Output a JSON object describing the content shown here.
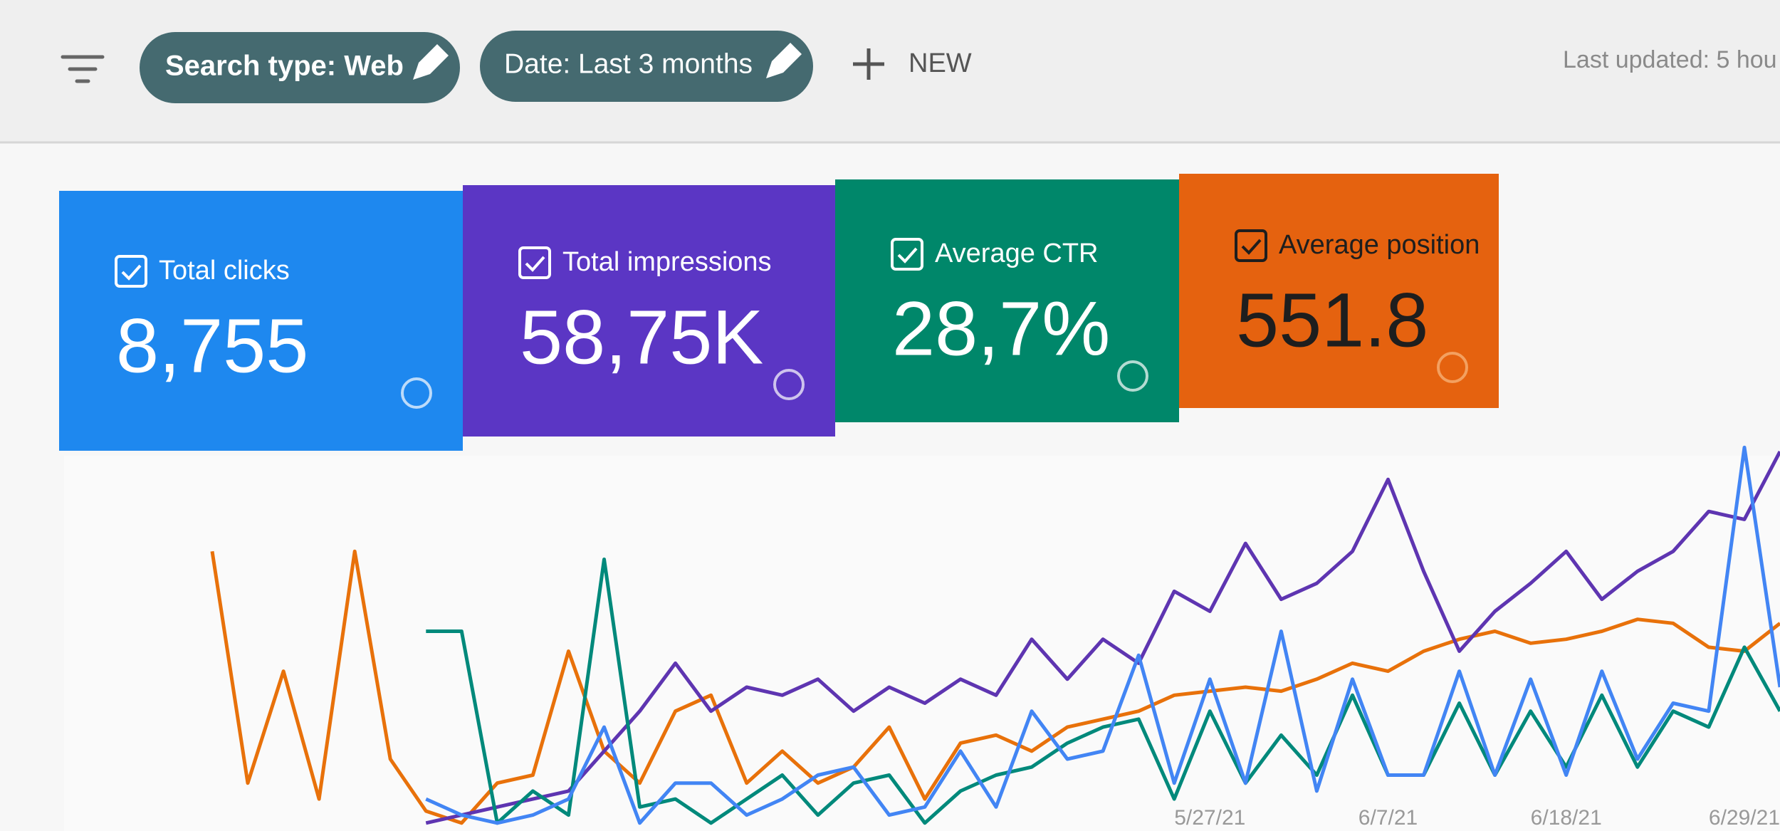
{
  "toolbar": {
    "chips": [
      "Search type: Web",
      "Date: Last 3 months"
    ],
    "new_button": "NEW",
    "last_updated": "Last updated: 5 hou"
  },
  "cards": [
    {
      "label": "Total clicks",
      "value": "8,755",
      "color": "#1e88ef"
    },
    {
      "label": "Total impressions",
      "value": "58,75K",
      "color": "#5b36c4"
    },
    {
      "label": "Average CTR",
      "value": "28,7%",
      "color": "#00876a"
    },
    {
      "label": "Average position",
      "value": "551.8",
      "color": "#e5620f"
    }
  ],
  "chart_data": {
    "type": "line",
    "categories": [
      null,
      null,
      null,
      null,
      null,
      null,
      null,
      null,
      null,
      null,
      null,
      null,
      null,
      null,
      null,
      null,
      null,
      null,
      null,
      null,
      null,
      null,
      null,
      null,
      null,
      null,
      null,
      null,
      "5/27/21",
      null,
      null,
      null,
      null,
      "6/7/21",
      null,
      null,
      null,
      null,
      "6/18/21",
      null,
      null,
      null,
      null,
      "6/29/21",
      null
    ],
    "ylim": [
      0,
      100
    ],
    "series": [
      {
        "name": "Average position",
        "color": "#e8710a",
        "values": [
          70,
          12,
          40,
          8,
          70,
          18,
          5,
          2,
          12,
          14,
          45,
          20,
          12,
          30,
          34,
          12,
          20,
          12,
          16,
          26,
          8,
          22,
          24,
          20,
          26,
          28,
          30,
          34,
          35,
          36,
          35,
          38,
          42,
          40,
          45,
          48,
          50,
          47,
          48,
          50,
          53,
          52,
          46,
          45,
          52
        ]
      },
      {
        "name": "Total impressions",
        "color": "#5e35b1",
        "values": [
          null,
          null,
          null,
          null,
          null,
          null,
          2,
          4,
          6,
          8,
          10,
          20,
          30,
          42,
          30,
          36,
          34,
          38,
          30,
          36,
          32,
          38,
          34,
          48,
          38,
          48,
          42,
          60,
          55,
          72,
          58,
          62,
          70,
          88,
          65,
          45,
          55,
          62,
          70,
          58,
          65,
          70,
          80,
          78,
          95
        ]
      },
      {
        "name": "Average CTR",
        "color": "#00897b",
        "values": [
          null,
          null,
          null,
          null,
          null,
          null,
          50,
          50,
          2,
          10,
          4,
          68,
          6,
          8,
          2,
          8,
          14,
          4,
          12,
          14,
          2,
          10,
          14,
          16,
          22,
          26,
          28,
          8,
          30,
          12,
          24,
          14,
          34,
          14,
          14,
          32,
          14,
          30,
          16,
          34,
          16,
          30,
          26,
          46,
          30
        ]
      },
      {
        "name": "Total clicks",
        "color": "#4285f4",
        "values": [
          null,
          null,
          null,
          null,
          null,
          null,
          8,
          4,
          2,
          4,
          8,
          26,
          2,
          12,
          12,
          4,
          8,
          14,
          16,
          4,
          6,
          20,
          6,
          30,
          18,
          20,
          44,
          12,
          38,
          12,
          50,
          10,
          38,
          14,
          14,
          40,
          14,
          38,
          14,
          40,
          18,
          32,
          30,
          96,
          36
        ]
      }
    ]
  }
}
